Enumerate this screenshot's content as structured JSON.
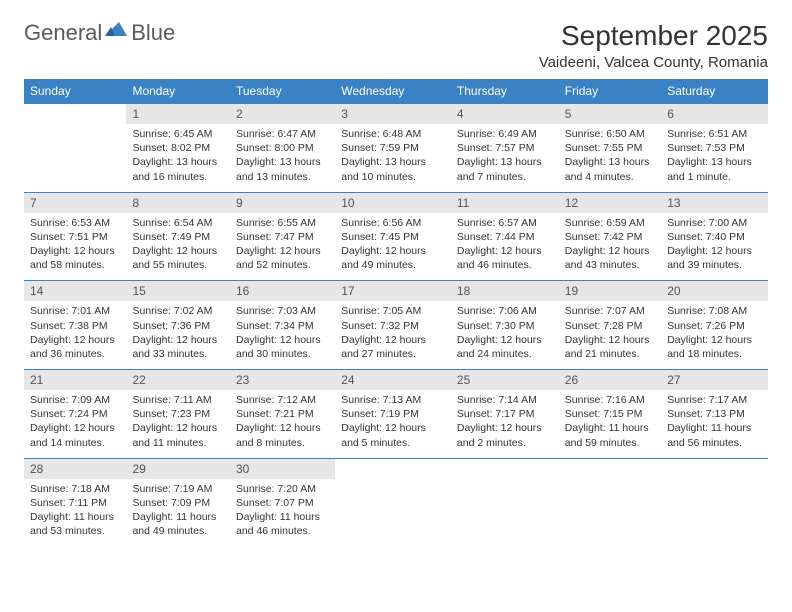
{
  "logo": {
    "text1": "General",
    "text2": "Blue"
  },
  "title": "September 2025",
  "location": "Vaideeni, Valcea County, Romania",
  "header_bg": "#3b82c4",
  "daynum_bg": "#e6e6e6",
  "days": [
    "Sunday",
    "Monday",
    "Tuesday",
    "Wednesday",
    "Thursday",
    "Friday",
    "Saturday"
  ],
  "weeks": [
    {
      "nums": [
        "",
        "1",
        "2",
        "3",
        "4",
        "5",
        "6"
      ],
      "cells": [
        {
          "sunrise": "",
          "sunset": "",
          "daylight": ""
        },
        {
          "sunrise": "Sunrise: 6:45 AM",
          "sunset": "Sunset: 8:02 PM",
          "daylight": "Daylight: 13 hours and 16 minutes."
        },
        {
          "sunrise": "Sunrise: 6:47 AM",
          "sunset": "Sunset: 8:00 PM",
          "daylight": "Daylight: 13 hours and 13 minutes."
        },
        {
          "sunrise": "Sunrise: 6:48 AM",
          "sunset": "Sunset: 7:59 PM",
          "daylight": "Daylight: 13 hours and 10 minutes."
        },
        {
          "sunrise": "Sunrise: 6:49 AM",
          "sunset": "Sunset: 7:57 PM",
          "daylight": "Daylight: 13 hours and 7 minutes."
        },
        {
          "sunrise": "Sunrise: 6:50 AM",
          "sunset": "Sunset: 7:55 PM",
          "daylight": "Daylight: 13 hours and 4 minutes."
        },
        {
          "sunrise": "Sunrise: 6:51 AM",
          "sunset": "Sunset: 7:53 PM",
          "daylight": "Daylight: 13 hours and 1 minute."
        }
      ]
    },
    {
      "nums": [
        "7",
        "8",
        "9",
        "10",
        "11",
        "12",
        "13"
      ],
      "cells": [
        {
          "sunrise": "Sunrise: 6:53 AM",
          "sunset": "Sunset: 7:51 PM",
          "daylight": "Daylight: 12 hours and 58 minutes."
        },
        {
          "sunrise": "Sunrise: 6:54 AM",
          "sunset": "Sunset: 7:49 PM",
          "daylight": "Daylight: 12 hours and 55 minutes."
        },
        {
          "sunrise": "Sunrise: 6:55 AM",
          "sunset": "Sunset: 7:47 PM",
          "daylight": "Daylight: 12 hours and 52 minutes."
        },
        {
          "sunrise": "Sunrise: 6:56 AM",
          "sunset": "Sunset: 7:45 PM",
          "daylight": "Daylight: 12 hours and 49 minutes."
        },
        {
          "sunrise": "Sunrise: 6:57 AM",
          "sunset": "Sunset: 7:44 PM",
          "daylight": "Daylight: 12 hours and 46 minutes."
        },
        {
          "sunrise": "Sunrise: 6:59 AM",
          "sunset": "Sunset: 7:42 PM",
          "daylight": "Daylight: 12 hours and 43 minutes."
        },
        {
          "sunrise": "Sunrise: 7:00 AM",
          "sunset": "Sunset: 7:40 PM",
          "daylight": "Daylight: 12 hours and 39 minutes."
        }
      ]
    },
    {
      "nums": [
        "14",
        "15",
        "16",
        "17",
        "18",
        "19",
        "20"
      ],
      "cells": [
        {
          "sunrise": "Sunrise: 7:01 AM",
          "sunset": "Sunset: 7:38 PM",
          "daylight": "Daylight: 12 hours and 36 minutes."
        },
        {
          "sunrise": "Sunrise: 7:02 AM",
          "sunset": "Sunset: 7:36 PM",
          "daylight": "Daylight: 12 hours and 33 minutes."
        },
        {
          "sunrise": "Sunrise: 7:03 AM",
          "sunset": "Sunset: 7:34 PM",
          "daylight": "Daylight: 12 hours and 30 minutes."
        },
        {
          "sunrise": "Sunrise: 7:05 AM",
          "sunset": "Sunset: 7:32 PM",
          "daylight": "Daylight: 12 hours and 27 minutes."
        },
        {
          "sunrise": "Sunrise: 7:06 AM",
          "sunset": "Sunset: 7:30 PM",
          "daylight": "Daylight: 12 hours and 24 minutes."
        },
        {
          "sunrise": "Sunrise: 7:07 AM",
          "sunset": "Sunset: 7:28 PM",
          "daylight": "Daylight: 12 hours and 21 minutes."
        },
        {
          "sunrise": "Sunrise: 7:08 AM",
          "sunset": "Sunset: 7:26 PM",
          "daylight": "Daylight: 12 hours and 18 minutes."
        }
      ]
    },
    {
      "nums": [
        "21",
        "22",
        "23",
        "24",
        "25",
        "26",
        "27"
      ],
      "cells": [
        {
          "sunrise": "Sunrise: 7:09 AM",
          "sunset": "Sunset: 7:24 PM",
          "daylight": "Daylight: 12 hours and 14 minutes."
        },
        {
          "sunrise": "Sunrise: 7:11 AM",
          "sunset": "Sunset: 7:23 PM",
          "daylight": "Daylight: 12 hours and 11 minutes."
        },
        {
          "sunrise": "Sunrise: 7:12 AM",
          "sunset": "Sunset: 7:21 PM",
          "daylight": "Daylight: 12 hours and 8 minutes."
        },
        {
          "sunrise": "Sunrise: 7:13 AM",
          "sunset": "Sunset: 7:19 PM",
          "daylight": "Daylight: 12 hours and 5 minutes."
        },
        {
          "sunrise": "Sunrise: 7:14 AM",
          "sunset": "Sunset: 7:17 PM",
          "daylight": "Daylight: 12 hours and 2 minutes."
        },
        {
          "sunrise": "Sunrise: 7:16 AM",
          "sunset": "Sunset: 7:15 PM",
          "daylight": "Daylight: 11 hours and 59 minutes."
        },
        {
          "sunrise": "Sunrise: 7:17 AM",
          "sunset": "Sunset: 7:13 PM",
          "daylight": "Daylight: 11 hours and 56 minutes."
        }
      ]
    },
    {
      "nums": [
        "28",
        "29",
        "30",
        "",
        "",
        "",
        ""
      ],
      "cells": [
        {
          "sunrise": "Sunrise: 7:18 AM",
          "sunset": "Sunset: 7:11 PM",
          "daylight": "Daylight: 11 hours and 53 minutes."
        },
        {
          "sunrise": "Sunrise: 7:19 AM",
          "sunset": "Sunset: 7:09 PM",
          "daylight": "Daylight: 11 hours and 49 minutes."
        },
        {
          "sunrise": "Sunrise: 7:20 AM",
          "sunset": "Sunset: 7:07 PM",
          "daylight": "Daylight: 11 hours and 46 minutes."
        },
        {
          "sunrise": "",
          "sunset": "",
          "daylight": ""
        },
        {
          "sunrise": "",
          "sunset": "",
          "daylight": ""
        },
        {
          "sunrise": "",
          "sunset": "",
          "daylight": ""
        },
        {
          "sunrise": "",
          "sunset": "",
          "daylight": ""
        }
      ]
    }
  ]
}
